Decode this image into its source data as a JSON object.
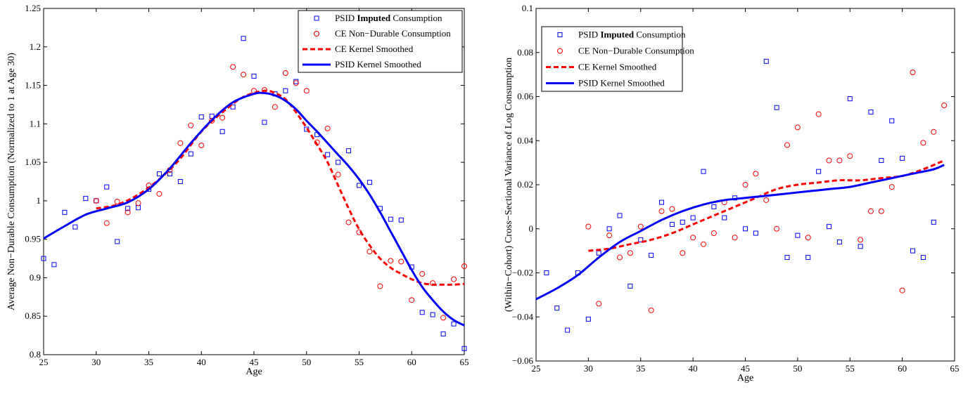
{
  "chart_data": [
    {
      "type": "scatter",
      "xlabel": "Age",
      "ylabel": "Average Non−Durable Consumption (Normalized to 1 at Age 30)",
      "xlim": [
        25,
        65
      ],
      "ylim": [
        0.8,
        1.25
      ],
      "xticks": [
        25,
        30,
        35,
        40,
        45,
        50,
        55,
        60,
        65
      ],
      "yticks": [
        0.8,
        0.85,
        0.9,
        0.95,
        1,
        1.05,
        1.1,
        1.15,
        1.2,
        1.25
      ],
      "ytick_labels": [
        "0.8",
        "0.85",
        "0.9",
        "0.95",
        "1",
        "1.05",
        "1.1",
        "1.15",
        "1.2",
        "1.25"
      ],
      "grid": false,
      "legend_position": "top-right",
      "legend": [
        {
          "prefix": "PSID ",
          "bold": "Imputed",
          "suffix": " Consumption",
          "marker": "square",
          "color": "#0000ff"
        },
        {
          "prefix": "CE Non−Durable Consumption",
          "bold": "",
          "suffix": "",
          "marker": "circle",
          "color": "#ff0000"
        },
        {
          "prefix": "CE Kernel Smoothed",
          "bold": "",
          "suffix": "",
          "marker": "dashed",
          "color": "#ff0000"
        },
        {
          "prefix": "PSID Kernel Smoothed",
          "bold": "",
          "suffix": "",
          "marker": "solid",
          "color": "#0000ff"
        }
      ],
      "series": [
        {
          "name": "PSID Imputed Consumption",
          "kind": "points",
          "marker": "square",
          "color": "#0000ff",
          "x": [
            25,
            26,
            27,
            28,
            29,
            30,
            31,
            32,
            33,
            34,
            35,
            36,
            37,
            38,
            39,
            40,
            41,
            42,
            43,
            44,
            45,
            46,
            47,
            48,
            49,
            50,
            51,
            52,
            53,
            54,
            55,
            56,
            57,
            58,
            59,
            60,
            61,
            62,
            63,
            64,
            65
          ],
          "y": [
            0.925,
            0.917,
            0.985,
            0.966,
            1.003,
            1.0,
            1.018,
            0.947,
            0.99,
            0.991,
            1.015,
            1.035,
            1.035,
            1.025,
            1.061,
            1.109,
            1.11,
            1.09,
            1.122,
            1.211,
            1.162,
            1.102,
            1.139,
            1.143,
            1.155,
            1.093,
            1.086,
            1.06,
            1.05,
            1.065,
            1.02,
            1.024,
            0.99,
            0.976,
            0.975,
            0.914,
            0.855,
            0.852,
            0.827,
            0.84,
            0.808
          ]
        },
        {
          "name": "CE Non−Durable Consumption",
          "kind": "points",
          "marker": "circle",
          "color": "#ff0000",
          "x": [
            30,
            31,
            32,
            33,
            34,
            35,
            36,
            37,
            38,
            39,
            40,
            41,
            42,
            43,
            44,
            45,
            46,
            47,
            48,
            49,
            50,
            51,
            52,
            53,
            54,
            55,
            56,
            57,
            58,
            59,
            60,
            61,
            62,
            63,
            64,
            65
          ],
          "y": [
            1.0,
            0.971,
            0.999,
            0.985,
            0.997,
            1.02,
            1.009,
            1.04,
            1.075,
            1.098,
            1.072,
            1.104,
            1.108,
            1.174,
            1.164,
            1.143,
            1.144,
            1.122,
            1.166,
            1.153,
            1.143,
            1.076,
            1.094,
            1.034,
            0.972,
            0.959,
            0.934,
            0.889,
            0.922,
            0.921,
            0.871,
            0.905,
            0.893,
            0.848,
            0.898,
            0.915
          ]
        },
        {
          "name": "CE Kernel Smoothed",
          "kind": "line",
          "style": "dashed",
          "color": "#ff0000",
          "x": [
            30,
            32,
            34,
            36,
            38,
            40,
            42,
            44,
            46,
            47,
            48,
            49,
            50,
            51,
            52,
            53,
            54,
            55,
            56,
            57,
            58,
            59,
            60,
            61,
            62,
            63,
            64,
            65
          ],
          "y": [
            0.99,
            0.995,
            1.008,
            1.028,
            1.055,
            1.09,
            1.115,
            1.135,
            1.143,
            1.14,
            1.132,
            1.115,
            1.095,
            1.073,
            1.05,
            1.02,
            0.99,
            0.963,
            0.942,
            0.925,
            0.913,
            0.905,
            0.898,
            0.893,
            0.891,
            0.891,
            0.891,
            0.892
          ]
        },
        {
          "name": "PSID Kernel Smoothed",
          "kind": "line",
          "style": "solid",
          "color": "#0000ff",
          "x": [
            25,
            27,
            29,
            31,
            33,
            35,
            37,
            39,
            41,
            43,
            45,
            46,
            47,
            48,
            49,
            50,
            51,
            52,
            53,
            54,
            55,
            56,
            57,
            58,
            59,
            60,
            61,
            62,
            63,
            64,
            65
          ],
          "y": [
            0.951,
            0.967,
            0.982,
            0.99,
            0.998,
            1.015,
            1.042,
            1.075,
            1.105,
            1.128,
            1.139,
            1.14,
            1.137,
            1.13,
            1.119,
            1.104,
            1.09,
            1.075,
            1.06,
            1.045,
            1.028,
            1.008,
            0.985,
            0.96,
            0.935,
            0.91,
            0.888,
            0.871,
            0.856,
            0.845,
            0.838
          ]
        }
      ]
    },
    {
      "type": "scatter",
      "xlabel": "Age",
      "ylabel": "(Within−Cohort) Cross−Sectional Variance of Log Consumption",
      "xlim": [
        25,
        65
      ],
      "ylim": [
        -0.06,
        0.1
      ],
      "xticks": [
        25,
        30,
        35,
        40,
        45,
        50,
        55,
        60,
        65
      ],
      "yticks": [
        -0.06,
        -0.04,
        -0.02,
        0,
        0.02,
        0.04,
        0.06,
        0.08,
        0.1
      ],
      "ytick_labels": [
        "−0.06",
        "−0.04",
        "−0.02",
        "0",
        "0.02",
        "0.04",
        "0.06",
        "0.08",
        "0.1"
      ],
      "grid": false,
      "legend_position": "top-left",
      "legend": [
        {
          "prefix": "PSID ",
          "bold": "Imputed",
          "suffix": " Consumption",
          "marker": "square",
          "color": "#0000ff"
        },
        {
          "prefix": "CE Non−Durable Consumption",
          "bold": "",
          "suffix": "",
          "marker": "circle",
          "color": "#ff0000"
        },
        {
          "prefix": "CE Kernel Smoothed",
          "bold": "",
          "suffix": "",
          "marker": "dashed",
          "color": "#ff0000"
        },
        {
          "prefix": "PSID Kernel Smoothed",
          "bold": "",
          "suffix": "",
          "marker": "solid",
          "color": "#0000ff"
        }
      ],
      "series": [
        {
          "name": "PSID Imputed Consumption",
          "kind": "points",
          "marker": "square",
          "color": "#0000ff",
          "x": [
            26,
            27,
            28,
            29,
            30,
            31,
            32,
            33,
            34,
            35,
            36,
            37,
            38,
            39,
            40,
            41,
            42,
            43,
            44,
            45,
            46,
            47,
            48,
            49,
            50,
            51,
            52,
            53,
            54,
            55,
            56,
            57,
            58,
            59,
            60,
            61,
            62,
            63
          ],
          "y": [
            -0.02,
            -0.036,
            -0.046,
            -0.02,
            -0.041,
            -0.011,
            0.0,
            0.006,
            -0.026,
            -0.005,
            -0.012,
            0.012,
            0.002,
            0.003,
            0.005,
            0.026,
            0.01,
            0.005,
            0.014,
            0.0,
            -0.002,
            0.076,
            0.055,
            -0.013,
            -0.003,
            -0.013,
            0.026,
            0.001,
            -0.006,
            0.059,
            -0.008,
            0.053,
            0.031,
            0.049,
            0.032,
            -0.01,
            -0.013,
            0.003
          ]
        },
        {
          "name": "CE Non−Durable Consumption",
          "kind": "points",
          "marker": "circle",
          "color": "#ff0000",
          "x": [
            30,
            31,
            32,
            33,
            34,
            35,
            36,
            37,
            38,
            39,
            40,
            41,
            42,
            43,
            44,
            45,
            46,
            47,
            48,
            49,
            50,
            51,
            52,
            53,
            54,
            55,
            56,
            57,
            58,
            59,
            60,
            61,
            62,
            63,
            64
          ],
          "y": [
            0.001,
            -0.034,
            -0.003,
            -0.013,
            -0.011,
            0.001,
            -0.037,
            0.008,
            0.009,
            -0.011,
            -0.004,
            -0.007,
            -0.002,
            0.012,
            -0.004,
            0.02,
            0.025,
            0.013,
            0.0,
            0.038,
            0.046,
            -0.004,
            0.052,
            0.031,
            0.031,
            0.033,
            -0.005,
            0.008,
            0.008,
            0.019,
            -0.028,
            0.071,
            0.039,
            0.044,
            0.056
          ]
        },
        {
          "name": "CE Kernel Smoothed",
          "kind": "line",
          "style": "dashed",
          "color": "#ff0000",
          "x": [
            30,
            32,
            34,
            36,
            38,
            40,
            42,
            44,
            46,
            48,
            50,
            52,
            54,
            56,
            58,
            60,
            62,
            64
          ],
          "y": [
            -0.01,
            -0.009,
            -0.007,
            -0.005,
            -0.002,
            0.002,
            0.006,
            0.01,
            0.014,
            0.018,
            0.02,
            0.021,
            0.022,
            0.022,
            0.023,
            0.024,
            0.027,
            0.031
          ]
        },
        {
          "name": "PSID Kernel Smoothed",
          "kind": "line",
          "style": "solid",
          "color": "#0000ff",
          "x": [
            25,
            27,
            29,
            31,
            33,
            35,
            37,
            39,
            41,
            43,
            45,
            47,
            49,
            51,
            53,
            55,
            57,
            59,
            61,
            63,
            64
          ],
          "y": [
            -0.032,
            -0.027,
            -0.021,
            -0.013,
            -0.006,
            -0.001,
            0.004,
            0.008,
            0.011,
            0.013,
            0.014,
            0.015,
            0.016,
            0.017,
            0.018,
            0.019,
            0.021,
            0.023,
            0.025,
            0.027,
            0.029
          ]
        }
      ]
    }
  ]
}
